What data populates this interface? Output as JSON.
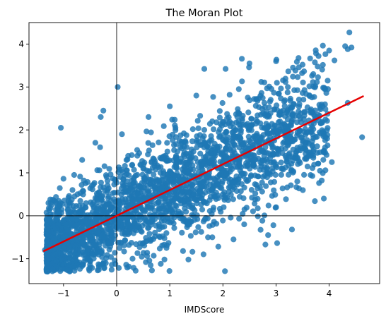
{
  "chart_data": {
    "type": "scatter",
    "title": "The Moran Plot",
    "xlabel": "IMDScore",
    "ylabel": "",
    "xlim": [
      -1.65,
      4.95
    ],
    "ylim": [
      -1.58,
      4.5
    ],
    "x_ticks": [
      -1,
      0,
      1,
      2,
      3,
      4
    ],
    "y_ticks": [
      -1,
      0,
      1,
      2,
      3,
      4
    ],
    "x_tick_labels": [
      "−1",
      "0",
      "1",
      "2",
      "3",
      "4"
    ],
    "y_tick_labels": [
      "−1",
      "0",
      "1",
      "2",
      "3",
      "4"
    ],
    "grid": false,
    "reference_lines": {
      "x": 0,
      "y": 0,
      "color": "#000000"
    },
    "points_color": "#1f77b4",
    "fit_line": {
      "color": "#e60000",
      "slope": 0.6,
      "intercept": 0.0,
      "x_range": [
        -1.38,
        4.65
      ]
    },
    "points_sample": [
      [
        4.38,
        4.27
      ],
      [
        4.3,
        3.95
      ],
      [
        4.42,
        3.92
      ],
      [
        4.35,
        3.88
      ],
      [
        4.0,
        3.85
      ],
      [
        3.8,
        3.72
      ],
      [
        4.1,
        3.62
      ],
      [
        3.5,
        3.52
      ],
      [
        3.43,
        3.46
      ],
      [
        3.0,
        3.6
      ],
      [
        2.5,
        3.55
      ],
      [
        2.05,
        3.42
      ],
      [
        1.65,
        3.42
      ],
      [
        0.02,
        3.0
      ],
      [
        4.62,
        1.83
      ],
      [
        4.35,
        2.63
      ],
      [
        4.05,
        1.25
      ],
      [
        3.6,
        1.95
      ],
      [
        3.9,
        0.4
      ],
      [
        3.3,
        -0.32
      ],
      [
        2.95,
        -0.22
      ],
      [
        2.85,
        -0.45
      ],
      [
        2.8,
        -0.67
      ],
      [
        2.2,
        -0.55
      ],
      [
        1.25,
        -0.82
      ],
      [
        1.35,
        -1.02
      ],
      [
        0.9,
        -1.02
      ],
      [
        0.55,
        -1.08
      ],
      [
        -1.05,
        2.05
      ],
      [
        -0.25,
        2.45
      ],
      [
        -0.3,
        2.3
      ],
      [
        -0.65,
        1.3
      ],
      [
        -1.3,
        -1.3
      ],
      [
        -1.25,
        0.38
      ],
      [
        -1.2,
        -1.25
      ],
      [
        -1.1,
        -0.2
      ],
      [
        -0.8,
        0.95
      ],
      [
        -0.4,
        1.7
      ],
      [
        0.6,
        2.3
      ],
      [
        1.0,
        2.55
      ],
      [
        1.5,
        2.8
      ],
      [
        2.3,
        2.95
      ],
      [
        2.9,
        2.7
      ],
      [
        3.55,
        2.15
      ],
      [
        3.7,
        1.4
      ],
      [
        3.4,
        0.8
      ],
      [
        3.0,
        0.2
      ],
      [
        2.4,
        -0.2
      ],
      [
        1.8,
        -0.5
      ],
      [
        0.3,
        -1.0
      ],
      [
        -0.5,
        -1.2
      ],
      [
        -0.9,
        -1.18
      ],
      [
        0.1,
        1.9
      ],
      [
        0.5,
        1.1
      ],
      [
        1.2,
        1.6
      ],
      [
        1.8,
        2.2
      ],
      [
        2.6,
        1.3
      ],
      [
        2.0,
        0.5
      ],
      [
        1.0,
        0.1
      ],
      [
        0.2,
        -0.4
      ],
      [
        -0.6,
        -0.9
      ],
      [
        -0.3,
        0.4
      ],
      [
        0.8,
        0.8
      ],
      [
        1.6,
        1.2
      ],
      [
        2.2,
        1.8
      ],
      [
        2.8,
        1.6
      ],
      [
        3.2,
        2.4
      ],
      [
        -1.35,
        -0.8
      ],
      [
        -1.0,
        -0.6
      ],
      [
        -0.7,
        0.1
      ],
      [
        0.4,
        0.5
      ],
      [
        1.4,
        0.4
      ],
      [
        2.5,
        2.1
      ],
      [
        3.1,
        1.1
      ],
      [
        0.0,
        -0.1
      ]
    ]
  }
}
